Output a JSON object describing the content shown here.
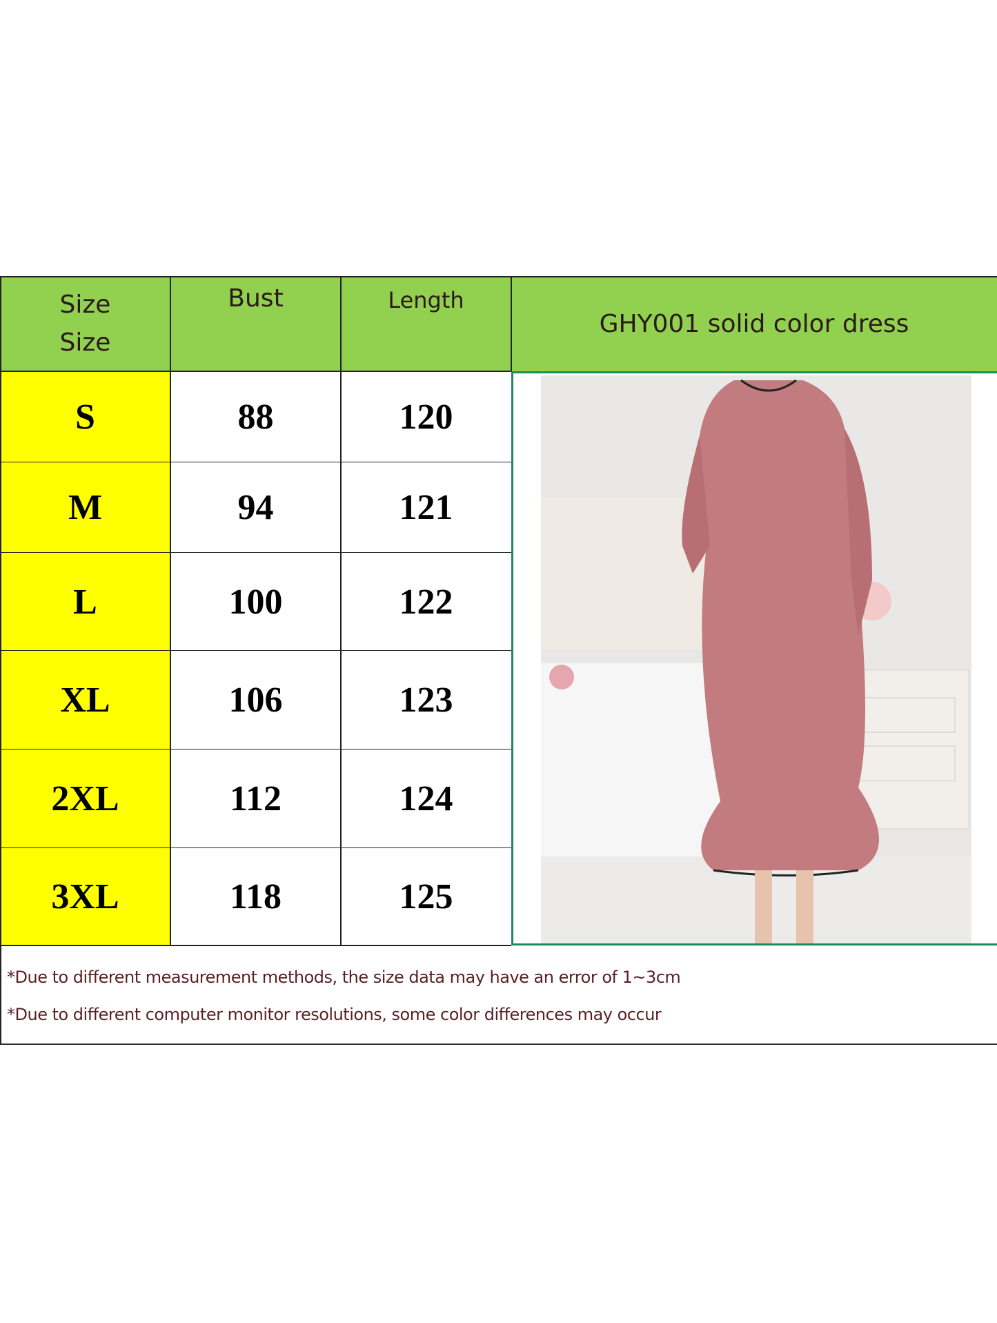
{
  "header": {
    "size_label_1": "Size",
    "size_label_2": "Size",
    "bust_label": "Bust",
    "length_label": "Length",
    "product_title": "GHY001 solid color dress"
  },
  "rows": [
    {
      "size": "S",
      "bust": "88",
      "length": "120"
    },
    {
      "size": "M",
      "bust": "94",
      "length": "121"
    },
    {
      "size": "L",
      "bust": "100",
      "length": "122"
    },
    {
      "size": "XL",
      "bust": "106",
      "length": "123"
    },
    {
      "size": "2XL",
      "bust": "112",
      "length": "124"
    },
    {
      "size": "3XL",
      "bust": "118",
      "length": "125"
    }
  ],
  "notes": [
    "*Due to different measurement methods, the size data may have an error of 1~3cm",
    "*Due to different computer monitor resolutions, some color differences may occur"
  ],
  "colors": {
    "header_bg": "#92d050",
    "size_bg": "#ffff00",
    "photo_border": "#1e8a5a",
    "dress": "#c27b7e"
  }
}
